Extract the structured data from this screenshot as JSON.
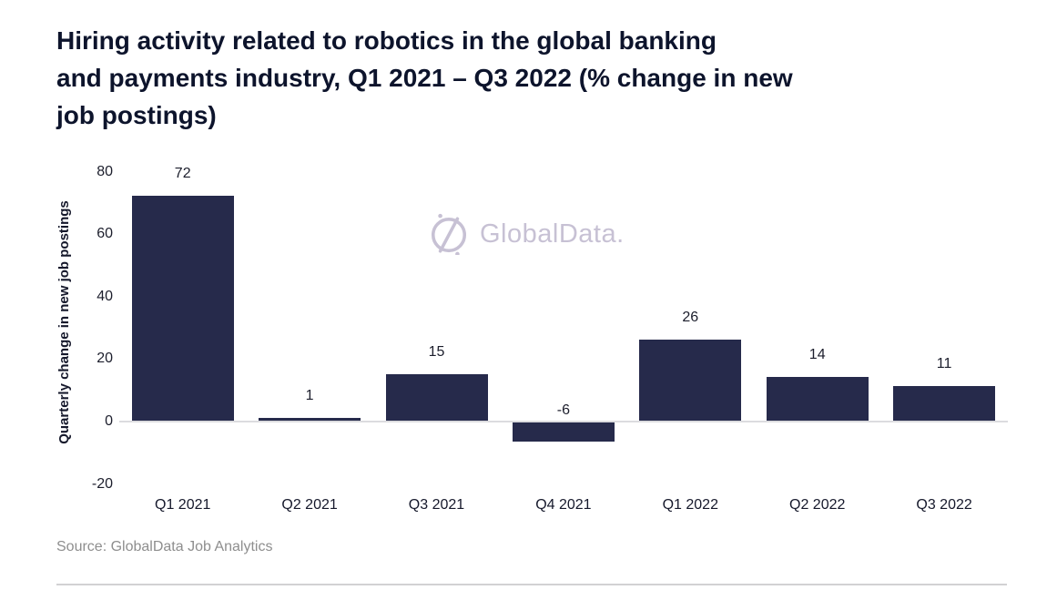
{
  "title": {
    "lines": [
      "Hiring activity related to robotics in the global banking",
      "and payments industry, Q1 2021 – Q3 2022 (% change in new",
      "job postings)"
    ]
  },
  "watermark": {
    "text": "GlobalData.",
    "color": "#c7c1d4"
  },
  "source": {
    "text": "Source: GlobalData Job Analytics"
  },
  "chart_data": {
    "type": "bar",
    "title": "Hiring activity related to robotics in the global banking and payments industry, Q1 2021 – Q3 2022 (% change in new job postings)",
    "categories": [
      "Q1 2021",
      "Q2 2021",
      "Q3 2021",
      "Q4 2021",
      "Q1 2022",
      "Q2 2022",
      "Q3 2022"
    ],
    "values": [
      72,
      1,
      15,
      -6,
      26,
      14,
      11
    ],
    "data_labels": [
      "72",
      "1",
      "15",
      "-6",
      "26",
      "14",
      "11"
    ],
    "xlabel": "",
    "ylabel": "Quarterly change in new job postings",
    "yticks": [
      80,
      60,
      40,
      20,
      0,
      -20
    ],
    "ylim": [
      -20,
      85
    ],
    "grid": false,
    "legend_position": "none",
    "bar_color": "#262a4b",
    "zero_line_color": "#dcdcdf",
    "label_color": "#1c1e2c"
  }
}
